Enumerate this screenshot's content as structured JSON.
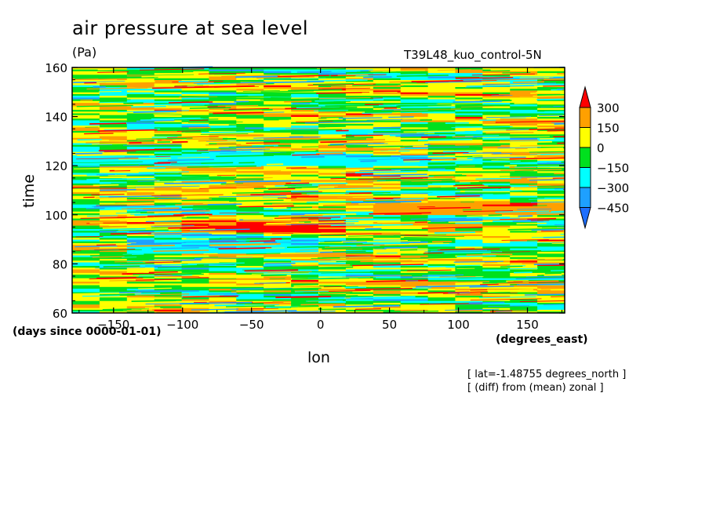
{
  "title": "air pressure at sea level",
  "units": "(Pa)",
  "dataset": "T39L48_kuo_control-5N",
  "notes": [
    "[ lat=-1.48755 degrees_north ]",
    "[ (diff) from (mean) zonal ]"
  ],
  "colors": {
    "levels": [
      "#1e6fff",
      "#1ea0ff",
      "#00ffff",
      "#00e01e",
      "#ffff00",
      "#ffa000",
      "#ff0000"
    ]
  },
  "chart_data": {
    "type": "heatmap",
    "title": "air pressure at sea level",
    "xlabel": "lon",
    "xunits": "(degrees_east)",
    "ylabel": "time",
    "yunits": "(days since 0000-01-01)",
    "xlim": [
      -180,
      177
    ],
    "ylim": [
      60,
      160
    ],
    "xticks": [
      -150,
      -100,
      -50,
      0,
      50,
      100,
      150
    ],
    "yticks": [
      60,
      80,
      100,
      120,
      140,
      160
    ],
    "colorbar": {
      "labels": [
        "300",
        "150",
        "0",
        "−150",
        "−300",
        "−450"
      ],
      "levels": [
        300,
        150,
        0,
        -150,
        -300,
        -450
      ],
      "extend": "both"
    },
    "features": [
      {
        "kind": "positive-band",
        "time": [
          93,
          98
        ],
        "lon": [
          -110,
          10
        ],
        "value": 330
      },
      {
        "kind": "positive-band",
        "time": [
          100,
          105
        ],
        "lon": [
          40,
          177
        ],
        "value": 250
      },
      {
        "kind": "negative-band",
        "time": [
          84,
          90
        ],
        "lon": [
          -150,
          0
        ],
        "value": -300
      },
      {
        "kind": "negative-band",
        "time": [
          120,
          124
        ],
        "lon": [
          -180,
          80
        ],
        "value": -250
      },
      {
        "kind": "positive-band",
        "time": [
          110,
          114
        ],
        "lon": [
          -120,
          60
        ],
        "value": 200
      }
    ]
  }
}
